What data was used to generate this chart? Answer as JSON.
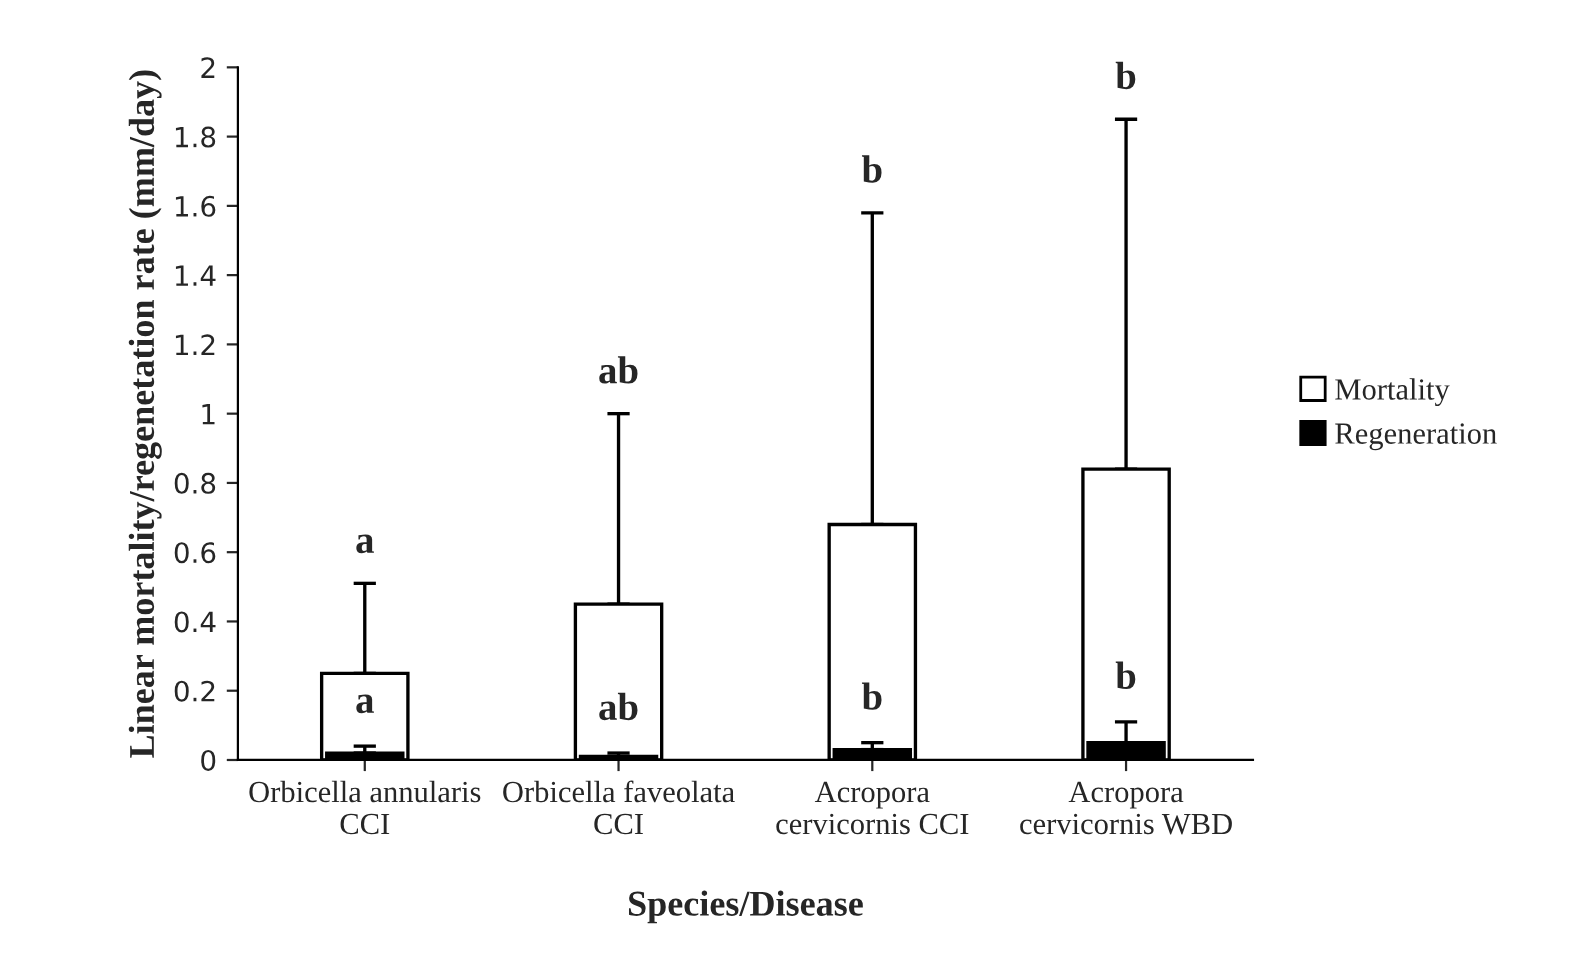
{
  "chart_data": {
    "type": "bar",
    "xlabel": "Species/Disease",
    "ylabel": "Linear mortality/regenetation rate (mm/day)",
    "categories": [
      "Orbicella annularis\nCCI",
      "Orbicella faveolata\nCCI",
      "Acropora\ncervicornis CCI",
      "Acropora\ncervicornis WBD"
    ],
    "series": [
      {
        "name": "Mortality",
        "color": "#ffffff",
        "values": [
          0.25,
          0.45,
          0.68,
          0.84
        ],
        "errors": [
          [
            0.25,
            0.51
          ],
          [
            0.45,
            1.0
          ],
          [
            0.68,
            1.58
          ],
          [
            0.84,
            1.85
          ]
        ]
      },
      {
        "name": "Regeneration",
        "color": "#000000",
        "values": [
          0.02,
          0.01,
          0.03,
          0.05
        ],
        "errors": [
          [
            0.02,
            0.04
          ],
          [
            0.01,
            0.02
          ],
          [
            0.03,
            0.05
          ],
          [
            0.05,
            0.11
          ]
        ]
      }
    ],
    "ylim": [
      0,
      2
    ],
    "yticks": [
      0,
      0.2,
      0.4,
      0.6,
      0.8,
      1,
      1.2,
      1.4,
      1.6,
      1.8,
      2
    ],
    "grid": false,
    "legend": "right",
    "annotations": [
      "a",
      "ab",
      "b",
      "b",
      "a",
      "ab",
      "b",
      "b"
    ]
  }
}
